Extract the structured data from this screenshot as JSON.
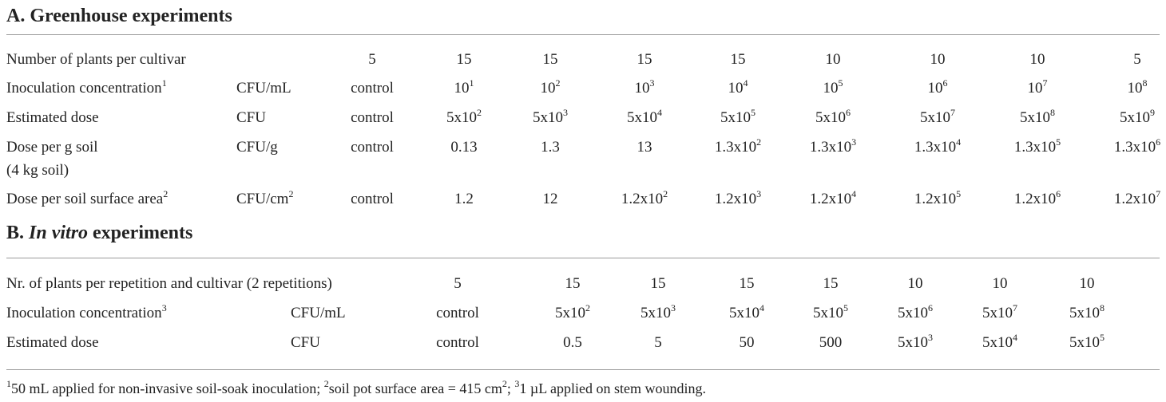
{
  "section_a": {
    "title": "A. Greenhouse experiments",
    "rows": [
      {
        "label": "Number of plants per cultivar",
        "label_sup": "",
        "label2": "",
        "unit": "",
        "unit_sup": "",
        "cells": [
          [
            "5",
            ""
          ],
          [
            "15",
            ""
          ],
          [
            "15",
            ""
          ],
          [
            "15",
            ""
          ],
          [
            "15",
            ""
          ],
          [
            "10",
            ""
          ],
          [
            "10",
            ""
          ],
          [
            "10",
            ""
          ],
          [
            "5",
            ""
          ]
        ]
      },
      {
        "label": "Inoculation concentration",
        "label_sup": "1",
        "label2": "",
        "unit": "CFU/mL",
        "unit_sup": "",
        "cells": [
          [
            "control",
            ""
          ],
          [
            "10",
            "1"
          ],
          [
            "10",
            "2"
          ],
          [
            "10",
            "3"
          ],
          [
            "10",
            "4"
          ],
          [
            "10",
            "5"
          ],
          [
            "10",
            "6"
          ],
          [
            "10",
            "7"
          ],
          [
            "10",
            "8"
          ]
        ]
      },
      {
        "label": "Estimated dose",
        "label_sup": "",
        "label2": "",
        "unit": "CFU",
        "unit_sup": "",
        "cells": [
          [
            "control",
            ""
          ],
          [
            "5x10",
            "2"
          ],
          [
            "5x10",
            "3"
          ],
          [
            "5x10",
            "4"
          ],
          [
            "5x10",
            "5"
          ],
          [
            "5x10",
            "6"
          ],
          [
            "5x10",
            "7"
          ],
          [
            "5x10",
            "8"
          ],
          [
            "5x10",
            "9"
          ]
        ]
      },
      {
        "label": "Dose per g soil",
        "label_sup": "",
        "label2": "(4 kg soil)",
        "unit": "CFU/g",
        "unit_sup": "",
        "cells": [
          [
            "control",
            ""
          ],
          [
            "0.13",
            ""
          ],
          [
            "1.3",
            ""
          ],
          [
            "13",
            ""
          ],
          [
            "1.3x10",
            "2"
          ],
          [
            "1.3x10",
            "3"
          ],
          [
            "1.3x10",
            "4"
          ],
          [
            "1.3x10",
            "5"
          ],
          [
            "1.3x10",
            "6"
          ]
        ]
      },
      {
        "label": "Dose per soil surface area",
        "label_sup": "2",
        "label2": "",
        "unit": "CFU/cm",
        "unit_sup": "2",
        "cells": [
          [
            "control",
            ""
          ],
          [
            "1.2",
            ""
          ],
          [
            "12",
            ""
          ],
          [
            "1.2x10",
            "2"
          ],
          [
            "1.2x10",
            "3"
          ],
          [
            "1.2x10",
            "4"
          ],
          [
            "1.2x10",
            "5"
          ],
          [
            "1.2x10",
            "6"
          ],
          [
            "1.2x10",
            "7"
          ]
        ]
      }
    ]
  },
  "section_b": {
    "title_prefix": "B. ",
    "title_italic": "In vitro",
    "title_suffix": " experiments",
    "rows": [
      {
        "label": "Nr. of plants per repetition and cultivar (2 repetitions)",
        "label_sup": "",
        "unit": "",
        "unit_sup": "",
        "cells": [
          [
            "5",
            ""
          ],
          [
            "15",
            ""
          ],
          [
            "15",
            ""
          ],
          [
            "15",
            ""
          ],
          [
            "15",
            ""
          ],
          [
            "10",
            ""
          ],
          [
            "10",
            ""
          ],
          [
            "10",
            ""
          ]
        ]
      },
      {
        "label": "Inoculation concentration",
        "label_sup": "3",
        "unit": "CFU/mL",
        "unit_sup": "",
        "cells": [
          [
            "control",
            ""
          ],
          [
            "5x10",
            "2"
          ],
          [
            "5x10",
            "3"
          ],
          [
            "5x10",
            "4"
          ],
          [
            "5x10",
            "5"
          ],
          [
            "5x10",
            "6"
          ],
          [
            "5x10",
            "7"
          ],
          [
            "5x10",
            "8"
          ]
        ]
      },
      {
        "label": "Estimated dose",
        "label_sup": "",
        "unit": "CFU",
        "unit_sup": "",
        "cells": [
          [
            "control",
            ""
          ],
          [
            "0.5",
            ""
          ],
          [
            "5",
            ""
          ],
          [
            "50",
            ""
          ],
          [
            "500",
            ""
          ],
          [
            "5x10",
            "3"
          ],
          [
            "5x10",
            "4"
          ],
          [
            "5x10",
            "5"
          ]
        ]
      }
    ]
  },
  "footnote": [
    [
      "1",
      "50 mL applied for non-invasive soil-soak inoculation; "
    ],
    [
      "2",
      "soil pot surface area = 415 cm"
    ],
    [
      "2",
      "; "
    ],
    [
      "3",
      "1 µL applied on stem wounding."
    ]
  ]
}
